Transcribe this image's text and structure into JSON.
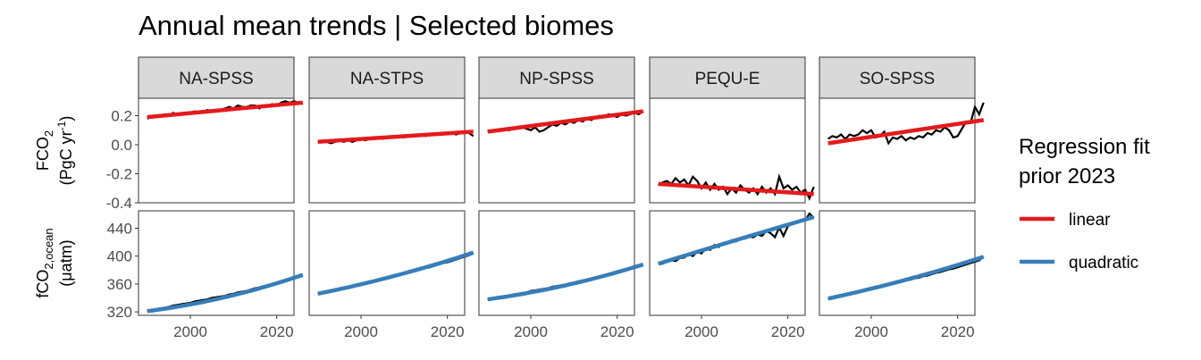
{
  "chart_data": {
    "type": "line",
    "title": "Annual mean trends | Selected biomes",
    "panels": [
      "NA-SPSS",
      "NA-STPS",
      "NP-SPSS",
      "PEQU-E",
      "SO-SPSS"
    ],
    "x_ticks": [
      2000,
      2020
    ],
    "xlim": [
      1988,
      2024
    ],
    "colors": {
      "linear": "#e41a1c",
      "quadratic": "#377eb8",
      "observed": "#000000"
    },
    "rows": [
      {
        "ylabel_line1": "FCO",
        "ylabel_sub": "2",
        "ylabel_line2_main": "(PgC yr",
        "ylabel_line2_sup": "-1",
        "ylabel_line2_end": ")",
        "ylim": [
          -0.4,
          0.32
        ],
        "y_ticks": [
          -0.4,
          -0.2,
          0.0,
          0.2
        ],
        "y_tick_labels": [
          "-0.4",
          "-0.2",
          "0.0",
          "0.2"
        ],
        "fit": "linear",
        "panels": [
          {
            "fit_start": 0.19,
            "fit_end": 0.29,
            "obs": [
              0.18,
              0.19,
              0.2,
              0.2,
              0.21,
              0.2,
              0.22,
              0.21,
              0.21,
              0.22,
              0.22,
              0.23,
              0.22,
              0.23,
              0.24,
              0.23,
              0.24,
              0.24,
              0.25,
              0.26,
              0.25,
              0.27,
              0.26,
              0.26,
              0.27,
              0.27,
              0.25,
              0.27,
              0.27,
              0.28,
              0.27,
              0.29,
              0.3,
              0.29,
              0.3,
              0.29,
              0.28
            ]
          },
          {
            "fit_start": 0.02,
            "fit_end": 0.09,
            "obs": [
              0.02,
              0.02,
              0.02,
              0.01,
              0.02,
              0.03,
              0.02,
              0.03,
              0.02,
              0.03,
              0.04,
              0.03,
              0.04,
              0.04,
              0.05,
              0.04,
              0.05,
              0.05,
              0.05,
              0.06,
              0.05,
              0.06,
              0.06,
              0.07,
              0.07,
              0.06,
              0.07,
              0.08,
              0.07,
              0.08,
              0.08,
              0.08,
              0.07,
              0.08,
              0.09,
              0.08,
              0.06
            ]
          },
          {
            "fit_start": 0.09,
            "fit_end": 0.23,
            "obs": [
              0.1,
              0.09,
              0.1,
              0.1,
              0.11,
              0.1,
              0.11,
              0.12,
              0.12,
              0.11,
              0.1,
              0.12,
              0.09,
              0.1,
              0.12,
              0.14,
              0.13,
              0.15,
              0.14,
              0.16,
              0.15,
              0.17,
              0.16,
              0.18,
              0.17,
              0.19,
              0.2,
              0.19,
              0.21,
              0.2,
              0.19,
              0.21,
              0.2,
              0.21,
              0.22,
              0.21,
              0.23
            ]
          },
          {
            "fit_start": -0.27,
            "fit_end": -0.34,
            "obs": [
              -0.28,
              -0.26,
              -0.25,
              -0.27,
              -0.23,
              -0.26,
              -0.24,
              -0.28,
              -0.22,
              -0.25,
              -0.3,
              -0.26,
              -0.31,
              -0.27,
              -0.31,
              -0.29,
              -0.34,
              -0.3,
              -0.33,
              -0.28,
              -0.31,
              -0.33,
              -0.3,
              -0.34,
              -0.29,
              -0.33,
              -0.3,
              -0.34,
              -0.22,
              -0.3,
              -0.28,
              -0.31,
              -0.29,
              -0.33,
              -0.31,
              -0.37,
              -0.29
            ]
          },
          {
            "fit_start": 0.01,
            "fit_end": 0.17,
            "obs": [
              0.04,
              0.06,
              0.05,
              0.07,
              0.04,
              0.07,
              0.06,
              0.07,
              0.1,
              0.08,
              0.1,
              0.05,
              0.06,
              0.09,
              0.01,
              0.05,
              0.04,
              0.06,
              0.03,
              0.05,
              0.04,
              0.06,
              0.05,
              0.08,
              0.07,
              0.1,
              0.09,
              0.12,
              0.1,
              0.05,
              0.06,
              0.11,
              0.16,
              0.15,
              0.26,
              0.21,
              0.29
            ]
          }
        ]
      },
      {
        "ylabel_line1": "fCO",
        "ylabel_sub": "2,ocean",
        "ylabel_line2_main": "(μatm)",
        "ylabel_line2_sup": "",
        "ylabel_line2_end": "",
        "ylim": [
          315,
          465
        ],
        "y_ticks": [
          320,
          360,
          400,
          440
        ],
        "y_tick_labels": [
          "320",
          "360",
          "400",
          "440"
        ],
        "fit": "quadratic",
        "panels": [
          {
            "fit_start": 321,
            "fit_mid": 341,
            "fit_end": 373,
            "obs": [
              321,
              322,
              324,
              325,
              326,
              327,
              329,
              330,
              331,
              332,
              333,
              335,
              336,
              337,
              338,
              340,
              341,
              342,
              343,
              345,
              346,
              348,
              349,
              350,
              352,
              354,
              355,
              357,
              358,
              360,
              362,
              363,
              365,
              367,
              368,
              370,
              373
            ]
          },
          {
            "fit_start": 346,
            "fit_mid": 372,
            "fit_end": 405,
            "obs": [
              346,
              347,
              349,
              350,
              351,
              353,
              354,
              355,
              357,
              358,
              360,
              361,
              363,
              364,
              365,
              367,
              368,
              370,
              371,
              373,
              375,
              376,
              378,
              379,
              381,
              383,
              384,
              386,
              388,
              390,
              391,
              393,
              395,
              397,
              399,
              401,
              405
            ]
          },
          {
            "fit_start": 338,
            "fit_mid": 358,
            "fit_end": 388,
            "obs": [
              338,
              339,
              340,
              341,
              342,
              343,
              345,
              346,
              347,
              348,
              350,
              351,
              352,
              353,
              354,
              356,
              357,
              358,
              359,
              361,
              362,
              364,
              365,
              366,
              368,
              369,
              371,
              372,
              374,
              376,
              377,
              379,
              381,
              382,
              384,
              386,
              388
            ]
          },
          {
            "fit_start": 389,
            "fit_mid": 423,
            "fit_end": 456,
            "obs": [
              391,
              389,
              392,
              394,
              393,
              397,
              398,
              403,
              400,
              406,
              404,
              411,
              409,
              416,
              413,
              419,
              418,
              423,
              421,
              426,
              425,
              428,
              427,
              431,
              429,
              436,
              433,
              427,
              441,
              429,
              443,
              446,
              448,
              452,
              451,
              461,
              455
            ]
          },
          {
            "fit_start": 339,
            "fit_mid": 366,
            "fit_end": 399,
            "obs": [
              339,
              340,
              342,
              343,
              344,
              346,
              347,
              349,
              350,
              352,
              353,
              354,
              356,
              357,
              359,
              360,
              362,
              363,
              365,
              366,
              368,
              369,
              371,
              372,
              374,
              376,
              377,
              379,
              381,
              382,
              384,
              386,
              388,
              390,
              392,
              394,
              399
            ]
          }
        ]
      }
    ],
    "legend": {
      "title_line1": "Regression fit",
      "title_line2": " prior 2023",
      "items": [
        {
          "key": "linear",
          "label": "linear"
        },
        {
          "key": "quadratic",
          "label": "quadratic"
        }
      ]
    }
  }
}
